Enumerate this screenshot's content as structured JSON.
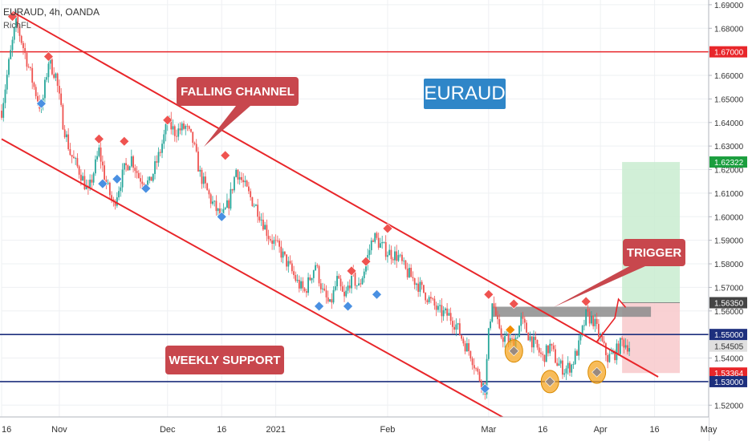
{
  "header": {
    "title": "EURAUD, 4h, OANDA",
    "author": "RichFL"
  },
  "annotations": {
    "falling_channel": "FALLING CHANNEL",
    "symbol": "EURAUD",
    "trigger": "TRIGGER",
    "weekly_support": "WEEKLY SUPPORT"
  },
  "colors": {
    "channel": "#e8262a",
    "support": "#1d2f7d",
    "callout": "#c8474d",
    "symbol_box": "#2f86c8",
    "bull_candle": "#26a69a",
    "bear_candle": "#ef5350",
    "target_zone": "#c9ecd0",
    "stop_zone": "#f8c9cb",
    "trigger_zone": "#8c8c8c",
    "pivot_high": "#ef5350",
    "pivot_low": "#4a90e2",
    "highlight": "#f5a623"
  },
  "chart_data": {
    "type": "candlestick",
    "instrument": "EURAUD",
    "timeframe": "4h",
    "y_axis": {
      "range": [
        1.515,
        1.692
      ],
      "ticks": [
        "1.69000",
        "1.68000",
        "1.67000",
        "1.66000",
        "1.65000",
        "1.64000",
        "1.63000",
        "1.62000",
        "1.61000",
        "1.60000",
        "1.59000",
        "1.58000",
        "1.57000",
        "1.56000",
        "1.55000",
        "1.54000",
        "1.53000",
        "1.52000"
      ]
    },
    "x_axis": {
      "ticks": [
        "16",
        "Nov",
        "Dec",
        "16",
        "2021",
        "Feb",
        "Mar",
        "16",
        "Apr",
        "16",
        "May"
      ],
      "tick_days": [
        0,
        16,
        46,
        61,
        76,
        107,
        135,
        150,
        166,
        181,
        196
      ],
      "last_day": 196
    },
    "price_labels": [
      {
        "value": "1.67000",
        "price": 1.67,
        "bg": "#e8262a",
        "fg": "#ffffff"
      },
      {
        "value": "1.62322",
        "price": 1.62322,
        "bg": "#1b9e3e",
        "fg": "#ffffff"
      },
      {
        "value": "1.56350",
        "price": 1.5635,
        "bg": "#444444",
        "fg": "#ffffff"
      },
      {
        "value": "1.55000",
        "price": 1.55,
        "bg": "#1d2f7d",
        "fg": "#ffffff"
      },
      {
        "value": "1.54505",
        "price": 1.54505,
        "bg": "#e0e0e0",
        "fg": "#333333"
      },
      {
        "value": "1.53364",
        "price": 1.53364,
        "bg": "#e8262a",
        "fg": "#ffffff"
      },
      {
        "value": "1.53000",
        "price": 1.53,
        "bg": "#1d2f7d",
        "fg": "#ffffff"
      }
    ],
    "horizontal_lines": [
      {
        "price": 1.67,
        "color": "#e8262a"
      },
      {
        "price": 1.55,
        "color": "#1d2f7d"
      },
      {
        "price": 1.53,
        "color": "#1d2f7d"
      }
    ],
    "channel": {
      "upper": [
        [
          3,
          1.687
        ],
        [
          182,
          1.532
        ]
      ],
      "lower": [
        [
          0,
          1.633
        ],
        [
          140,
          1.514
        ]
      ]
    },
    "price_path": [
      [
        0,
        1.645
      ],
      [
        2,
        1.665
      ],
      [
        4,
        1.683
      ],
      [
        6,
        1.672
      ],
      [
        9,
        1.655
      ],
      [
        11,
        1.645
      ],
      [
        13,
        1.666
      ],
      [
        15,
        1.66
      ],
      [
        17,
        1.64
      ],
      [
        19,
        1.627
      ],
      [
        22,
        1.618
      ],
      [
        24,
        1.61
      ],
      [
        27,
        1.628
      ],
      [
        29,
        1.614
      ],
      [
        31,
        1.605
      ],
      [
        34,
        1.62
      ],
      [
        36,
        1.625
      ],
      [
        38,
        1.617
      ],
      [
        41,
        1.614
      ],
      [
        44,
        1.628
      ],
      [
        46,
        1.64
      ],
      [
        48,
        1.636
      ],
      [
        51,
        1.638
      ],
      [
        53,
        1.632
      ],
      [
        55,
        1.618
      ],
      [
        58,
        1.607
      ],
      [
        61,
        1.599
      ],
      [
        63,
        1.606
      ],
      [
        65,
        1.62
      ],
      [
        67,
        1.614
      ],
      [
        69,
        1.608
      ],
      [
        71,
        1.603
      ],
      [
        74,
        1.592
      ],
      [
        77,
        1.586
      ],
      [
        80,
        1.578
      ],
      [
        82,
        1.572
      ],
      [
        84,
        1.568
      ],
      [
        87,
        1.58
      ],
      [
        89,
        1.568
      ],
      [
        91,
        1.562
      ],
      [
        93,
        1.573
      ],
      [
        95,
        1.565
      ],
      [
        97,
        1.575
      ],
      [
        99,
        1.57
      ],
      [
        101,
        1.58
      ],
      [
        103,
        1.592
      ],
      [
        105,
        1.588
      ],
      [
        107,
        1.585
      ],
      [
        110,
        1.583
      ],
      [
        112,
        1.577
      ],
      [
        115,
        1.572
      ],
      [
        117,
        1.568
      ],
      [
        119,
        1.564
      ],
      [
        121,
        1.56
      ],
      [
        124,
        1.558
      ],
      [
        126,
        1.554
      ],
      [
        128,
        1.547
      ],
      [
        130,
        1.542
      ],
      [
        132,
        1.533
      ],
      [
        134,
        1.527
      ],
      [
        135,
        1.55
      ],
      [
        136,
        1.565
      ],
      [
        137,
        1.558
      ],
      [
        138,
        1.55
      ],
      [
        140,
        1.548
      ],
      [
        142,
        1.546
      ],
      [
        144,
        1.556
      ],
      [
        146,
        1.55
      ],
      [
        148,
        1.545
      ],
      [
        150,
        1.54
      ],
      [
        152,
        1.545
      ],
      [
        154,
        1.538
      ],
      [
        156,
        1.535
      ],
      [
        158,
        1.537
      ],
      [
        160,
        1.545
      ],
      [
        162,
        1.558
      ],
      [
        164,
        1.556
      ],
      [
        166,
        1.548
      ],
      [
        168,
        1.54
      ],
      [
        170,
        1.542
      ],
      [
        172,
        1.547
      ],
      [
        174,
        1.545
      ]
    ],
    "pivots_high": [
      [
        3,
        1.685
      ],
      [
        13,
        1.668
      ],
      [
        27,
        1.633
      ],
      [
        34,
        1.632
      ],
      [
        46,
        1.641
      ],
      [
        62,
        1.626
      ],
      [
        97,
        1.577
      ],
      [
        101,
        1.581
      ],
      [
        107,
        1.595
      ],
      [
        135,
        1.567
      ],
      [
        142,
        1.563
      ],
      [
        162,
        1.564
      ]
    ],
    "pivots_low": [
      [
        11,
        1.648
      ],
      [
        28,
        1.614
      ],
      [
        32,
        1.616
      ],
      [
        40,
        1.612
      ],
      [
        61,
        1.6
      ],
      [
        88,
        1.562
      ],
      [
        96,
        1.562
      ],
      [
        104,
        1.567
      ],
      [
        134,
        1.527
      ]
    ],
    "highlighted_lows": [
      [
        142,
        1.543
      ],
      [
        152,
        1.53
      ],
      [
        165,
        1.534
      ]
    ],
    "orange_pivot_high": [
      141,
      1.552
    ],
    "trigger_zone": {
      "x0": 136,
      "x1": 180,
      "y0": 1.5575,
      "y1": 1.5618
    },
    "position": {
      "x0": 172,
      "x1": 188,
      "entry": 1.5635,
      "target": 1.62322,
      "stop": 1.53364
    },
    "projection": [
      [
        165,
        1.547
      ],
      [
        170,
        1.557
      ],
      [
        171,
        1.565
      ],
      [
        173,
        1.5615
      ]
    ]
  }
}
